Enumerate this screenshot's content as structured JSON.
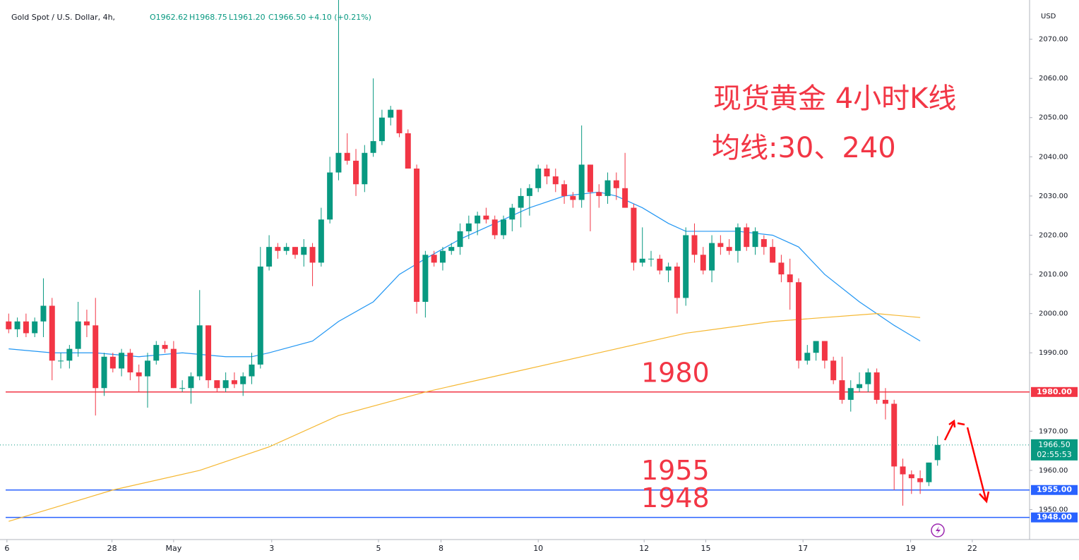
{
  "chart_data": {
    "type": "candlestick",
    "title": "Gold Spot / U.S. Dollar, 4h,",
    "ohlc_labels": [
      "O1962.62",
      "H1968.75",
      "L1961.20",
      "C1966.50"
    ],
    "change": "+4.10 (+0.21%)",
    "annotations": [
      "现货黄金 4小时K线",
      "均线:30、240"
    ],
    "currency": "USD",
    "up_color": "#089981",
    "down_color": "#f23645",
    "open": [
      1998,
      1996,
      1998,
      1995,
      1998,
      2002,
      1988,
      1988,
      1991,
      1998,
      1997,
      1981,
      1989,
      1986,
      1990,
      1985,
      1984,
      1988,
      1992,
      1991,
      1981,
      1981,
      1984,
      1997,
      1983,
      1981,
      1983,
      1982,
      1984,
      1987,
      2012,
      2017,
      2016,
      2017,
      2015,
      2017,
      2013,
      2024,
      2036,
      2041,
      2039,
      2033,
      2041,
      2044,
      2050,
      2052,
      2046,
      2037,
      2003,
      2015,
      2013,
      2016,
      2017,
      2021,
      2023,
      2025,
      2024,
      2020,
      2024,
      2027,
      2030,
      2032,
      2037,
      2035,
      2033,
      2030,
      2029,
      2038,
      2031,
      2030,
      2034,
      2032,
      2027,
      2013,
      2014,
      2014,
      2011,
      2012,
      2004,
      2020,
      2015,
      2011,
      2018,
      2017,
      2016,
      2022,
      2017,
      2019,
      2017,
      2013,
      2010,
      2008,
      1988,
      1990,
      1993,
      1988,
      1983,
      1978,
      1981,
      1982,
      1985,
      1978,
      1977,
      1961,
      1959,
      1958,
      1957,
      1962.62
    ],
    "high": [
      2000,
      1999,
      2000,
      1999,
      2009,
      2004,
      1990,
      1992,
      2003,
      2001,
      2004,
      1990,
      1990,
      1991,
      1991,
      1987,
      1990,
      1993,
      1993,
      1993,
      1983,
      1985,
      2006,
      1997,
      1983,
      1985,
      1985,
      1985,
      1990,
      2017,
      2020,
      2018,
      2018,
      2017,
      2019,
      2018,
      2027,
      2040,
      2080,
      2046,
      2042,
      2043,
      2060,
      2052,
      2053,
      2052,
      2047,
      2038,
      2016,
      2016,
      2017,
      2018,
      2023,
      2025,
      2026,
      2027,
      2025,
      2025,
      2028,
      2032,
      2033,
      2038,
      2038,
      2037,
      2034,
      2031,
      2048,
      2038,
      2033,
      2036,
      2036,
      2041,
      2028,
      2022,
      2016,
      2015,
      2013,
      2013,
      2022,
      2023,
      2017,
      2020,
      2020,
      2019,
      2023,
      2023,
      2022,
      2020,
      2019,
      2015,
      2014,
      2009,
      1992,
      1993,
      1993,
      1989,
      1989,
      1983,
      1985,
      1986,
      1986,
      1981,
      1978,
      1963,
      1960,
      1960,
      1962,
      1968.75
    ],
    "low": [
      1995,
      1994,
      1994,
      1994,
      1994,
      1983,
      1986,
      1986,
      1989,
      1994,
      1974,
      1979,
      1985,
      1984,
      1983,
      1980,
      1976,
      1987,
      1990,
      1981,
      1980,
      1977,
      1983,
      1981,
      1980,
      1980,
      1981,
      1979,
      1982,
      1986,
      2011,
      2014,
      2015,
      2014,
      2012,
      2007,
      2012,
      2023,
      2034,
      2038,
      2030,
      2031,
      2040,
      2043,
      2048,
      2045,
      2037,
      2000,
      1999,
      2012,
      2011,
      2015,
      2015,
      2019,
      2020,
      2023,
      2019,
      2019,
      2021,
      2022,
      2025,
      2031,
      2033,
      2031,
      2028,
      2027,
      2027,
      2021,
      2027,
      2028,
      2029,
      2027,
      2011,
      2012,
      2012,
      2010,
      2008,
      2000,
      2002,
      2013,
      2010,
      2008,
      2015,
      2015,
      2013,
      2016,
      2015,
      2015,
      2013,
      2008,
      2001,
      1986,
      1987,
      1988,
      1986,
      1982,
      1977,
      1975,
      1980,
      1980,
      1977,
      1973,
      1955,
      1951,
      1954,
      1954,
      1956,
      1961.2
    ],
    "close": [
      1996,
      1998,
      1995,
      1998,
      2002,
      1988,
      1988,
      1991,
      1998,
      1997,
      1981,
      1989,
      1986,
      1990,
      1985,
      1984,
      1988,
      1992,
      1991,
      1981,
      1981,
      1984,
      1997,
      1983,
      1981,
      1983,
      1982,
      1984,
      1987,
      2012,
      2017,
      2016,
      2017,
      2015,
      2017,
      2013,
      2024,
      2036,
      2041,
      2039,
      2033,
      2041,
      2044,
      2050,
      2052,
      2046,
      2037,
      2003,
      2015,
      2013,
      2016,
      2017,
      2021,
      2023,
      2025,
      2024,
      2020,
      2024,
      2027,
      2030,
      2032,
      2037,
      2035,
      2033,
      2030,
      2029,
      2038,
      2031,
      2030,
      2034,
      2032,
      2027,
      2013,
      2014,
      2014,
      2011,
      2012,
      2004,
      2020,
      2015,
      2011,
      2018,
      2017,
      2016,
      2022,
      2017,
      2021,
      2017,
      2013,
      2010,
      2008,
      1988,
      1990,
      1993,
      1988,
      1983,
      1978,
      1981,
      1982,
      1985,
      1978,
      1977,
      1961,
      1959,
      1958,
      1957,
      1962,
      1966.5
    ],
    "series": [
      {
        "color": "#2196f3",
        "x": [
          0,
          5,
          10,
          15,
          20,
          25,
          28,
          30,
          35,
          38,
          42,
          45,
          48,
          52,
          56,
          60,
          64,
          68,
          70,
          73,
          76,
          78,
          84,
          88,
          91,
          94,
          98,
          102,
          105
        ],
        "values": [
          1991,
          1990,
          1990,
          1989,
          1990,
          1989,
          1989,
          1990,
          1993,
          1998,
          2003,
          2010,
          2014,
          2019,
          2023,
          2027,
          2030,
          2031,
          2030,
          2027,
          2023,
          2021,
          2021,
          2020,
          2017,
          2010,
          2003,
          1997,
          1993
        ]
      },
      {
        "color": "#f5b731",
        "x": [
          0,
          12,
          22,
          30,
          38,
          48,
          58,
          68,
          78,
          88,
          100,
          105
        ],
        "values": [
          1947,
          1955,
          1960,
          1966,
          1974,
          1980,
          1985,
          1990,
          1995,
          1998,
          2000,
          1999
        ]
      }
    ],
    "levels": [
      {
        "value": 1980,
        "label": "1980.00",
        "annotation": "1980",
        "color": "#f23645"
      },
      {
        "value": 1955,
        "label": "1955.00",
        "annotation": "1955",
        "color": "#2962ff"
      },
      {
        "value": 1948,
        "label": "1948.00",
        "annotation": "1948",
        "color": "#2962ff"
      }
    ],
    "last_price": {
      "value": 1966.5,
      "label": "1966.50",
      "countdown": "02:55:53"
    },
    "ylim": [
      1942,
      2080
    ],
    "yticks": [
      {
        "value": 1950,
        "label": "1950.00"
      },
      {
        "value": 1960,
        "label": "1960.00"
      },
      {
        "value": 1970,
        "label": "1970.00"
      },
      {
        "value": 1990,
        "label": "1990.00"
      },
      {
        "value": 2000,
        "label": "2000.00"
      },
      {
        "value": 2010,
        "label": "2010.00"
      },
      {
        "value": 2020,
        "label": "2020.00"
      },
      {
        "value": 2030,
        "label": "2030.00"
      },
      {
        "value": 2040,
        "label": "2040.00"
      },
      {
        "value": 2050,
        "label": "2050.00"
      },
      {
        "value": 2060,
        "label": "2060.00"
      },
      {
        "value": 2070,
        "label": "2070.00"
      }
    ],
    "xlim": [
      -1,
      117.6
    ],
    "xticks": [
      {
        "value": -0.2,
        "label": "6"
      },
      {
        "value": 11.9,
        "label": "28"
      },
      {
        "value": 19,
        "label": "May"
      },
      {
        "value": 30.3,
        "label": "3"
      },
      {
        "value": 42.6,
        "label": "5"
      },
      {
        "value": 49.8,
        "label": "8"
      },
      {
        "value": 61,
        "label": "10"
      },
      {
        "value": 73.2,
        "label": "12"
      },
      {
        "value": 80.3,
        "label": "15"
      },
      {
        "value": 91.5,
        "label": "17"
      },
      {
        "value": 103.9,
        "label": "19"
      },
      {
        "value": 111,
        "label": "22"
      }
    ]
  }
}
